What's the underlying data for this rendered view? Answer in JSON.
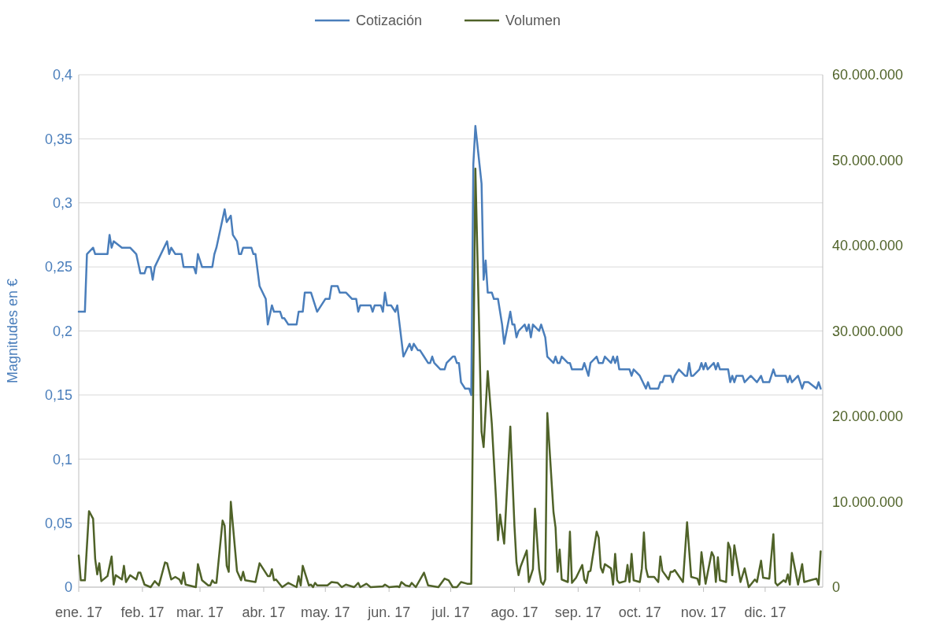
{
  "chart_data": {
    "type": "line",
    "ylabel": "Magnitudes en €",
    "legend": "top",
    "grid": "y",
    "line_style": "solid",
    "marker": "none",
    "xlim": [
      "2017-01-01",
      "2017-12-29"
    ],
    "xticks": [
      {
        "value": "2017-01-01",
        "label": "ene. 17"
      },
      {
        "value": "2017-02-01",
        "label": "feb. 17"
      },
      {
        "value": "2017-03-01",
        "label": "mar. 17"
      },
      {
        "value": "2017-04-01",
        "label": "abr. 17"
      },
      {
        "value": "2017-05-01",
        "label": "may. 17"
      },
      {
        "value": "2017-06-01",
        "label": "jun. 17"
      },
      {
        "value": "2017-07-01",
        "label": "jul. 17"
      },
      {
        "value": "2017-08-01",
        "label": "ago. 17"
      },
      {
        "value": "2017-09-01",
        "label": "sep. 17"
      },
      {
        "value": "2017-10-01",
        "label": "oct. 17"
      },
      {
        "value": "2017-11-01",
        "label": "nov. 17"
      },
      {
        "value": "2017-12-01",
        "label": "dic. 17"
      }
    ],
    "ylim": [
      0,
      0.4
    ],
    "yticks": [
      0,
      {
        "value": 0.05,
        "label": "0,05"
      },
      {
        "value": 0.1,
        "label": "0,1"
      },
      {
        "value": 0.15,
        "label": "0,15"
      },
      {
        "value": 0.2,
        "label": "0,2"
      },
      {
        "value": 0.25,
        "label": "0,25"
      },
      {
        "value": 0.3,
        "label": "0,3"
      },
      {
        "value": 0.35,
        "label": "0,35"
      },
      {
        "value": 0.4,
        "label": "0,4"
      }
    ],
    "y2lim": [
      0,
      60000000
    ],
    "y2ticks": [
      0,
      {
        "value": 10000000,
        "label": "10.000.000"
      },
      {
        "value": 20000000,
        "label": "20.000.000"
      },
      {
        "value": 30000000,
        "label": "30.000.000"
      },
      {
        "value": 40000000,
        "label": "40.000.000"
      },
      {
        "value": 50000000,
        "label": "50.000.000"
      },
      {
        "value": 60000000,
        "label": "60.000.000"
      }
    ],
    "series": [
      {
        "name": "Cotización",
        "color": "#4a7ebb",
        "x": [
          "2017-01-01",
          "2017-01-04",
          "2017-01-05",
          "2017-01-08",
          "2017-01-09",
          "2017-01-15",
          "2017-01-16",
          "2017-01-17",
          "2017-01-18",
          "2017-01-22",
          "2017-01-26",
          "2017-01-29",
          "2017-01-31",
          "2017-02-02",
          "2017-02-03",
          "2017-02-05",
          "2017-02-06",
          "2017-02-07",
          "2017-02-13",
          "2017-02-14",
          "2017-02-15",
          "2017-02-17",
          "2017-02-20",
          "2017-02-21",
          "2017-02-26",
          "2017-02-27",
          "2017-02-28",
          "2017-03-02",
          "2017-03-07",
          "2017-03-08",
          "2017-03-09",
          "2017-03-13",
          "2017-03-14",
          "2017-03-16",
          "2017-03-17",
          "2017-03-19",
          "2017-03-20",
          "2017-03-21",
          "2017-03-22",
          "2017-03-26",
          "2017-03-27",
          "2017-03-28",
          "2017-03-30",
          "2017-04-02",
          "2017-04-03",
          "2017-04-05",
          "2017-04-06",
          "2017-04-09",
          "2017-04-10",
          "2017-04-11",
          "2017-04-13",
          "2017-04-17",
          "2017-04-18",
          "2017-04-20",
          "2017-04-21",
          "2017-04-24",
          "2017-04-27",
          "2017-05-01",
          "2017-05-03",
          "2017-05-04",
          "2017-05-07",
          "2017-05-08",
          "2017-05-11",
          "2017-05-14",
          "2017-05-16",
          "2017-05-17",
          "2017-05-18",
          "2017-05-23",
          "2017-05-24",
          "2017-05-25",
          "2017-05-28",
          "2017-05-29",
          "2017-05-30",
          "2017-05-31",
          "2017-06-02",
          "2017-06-04",
          "2017-06-05",
          "2017-06-08",
          "2017-06-11",
          "2017-06-12",
          "2017-06-13",
          "2017-06-15",
          "2017-06-16",
          "2017-06-18",
          "2017-06-20",
          "2017-06-21",
          "2017-06-22",
          "2017-06-23",
          "2017-06-26",
          "2017-06-28",
          "2017-06-29",
          "2017-07-02",
          "2017-07-03",
          "2017-07-04",
          "2017-07-05",
          "2017-07-06",
          "2017-07-08",
          "2017-07-10",
          "2017-07-11",
          "2017-07-12",
          "2017-07-13",
          "2017-07-16",
          "2017-07-17",
          "2017-07-18",
          "2017-07-19",
          "2017-07-21",
          "2017-07-22",
          "2017-07-24",
          "2017-07-26",
          "2017-07-27",
          "2017-07-30",
          "2017-07-31",
          "2017-08-01",
          "2017-08-02",
          "2017-08-03",
          "2017-08-06",
          "2017-08-07",
          "2017-08-08",
          "2017-08-09",
          "2017-08-10",
          "2017-08-13",
          "2017-08-14",
          "2017-08-16",
          "2017-08-17",
          "2017-08-20",
          "2017-08-21",
          "2017-08-22",
          "2017-08-23",
          "2017-08-24",
          "2017-08-27",
          "2017-08-28",
          "2017-08-29",
          "2017-09-03",
          "2017-09-04",
          "2017-09-06",
          "2017-09-07",
          "2017-09-10",
          "2017-09-11",
          "2017-09-13",
          "2017-09-14",
          "2017-09-17",
          "2017-09-18",
          "2017-09-19",
          "2017-09-20",
          "2017-09-21",
          "2017-09-26",
          "2017-09-27",
          "2017-09-28",
          "2017-10-01",
          "2017-10-04",
          "2017-10-05",
          "2017-10-06",
          "2017-10-10",
          "2017-10-11",
          "2017-10-12",
          "2017-10-13",
          "2017-10-16",
          "2017-10-17",
          "2017-10-18",
          "2017-10-20",
          "2017-10-23",
          "2017-10-24",
          "2017-10-25",
          "2017-10-26",
          "2017-10-27",
          "2017-10-30",
          "2017-10-31",
          "2017-11-01",
          "2017-11-02",
          "2017-11-03",
          "2017-11-06",
          "2017-11-07",
          "2017-11-08",
          "2017-11-09",
          "2017-11-13",
          "2017-11-14",
          "2017-11-15",
          "2017-11-16",
          "2017-11-17",
          "2017-11-20",
          "2017-11-21",
          "2017-11-24",
          "2017-11-27",
          "2017-11-29",
          "2017-11-30",
          "2017-12-03",
          "2017-12-05",
          "2017-12-06",
          "2017-12-11",
          "2017-12-12",
          "2017-12-13",
          "2017-12-14",
          "2017-12-17",
          "2017-12-19",
          "2017-12-20",
          "2017-12-22",
          "2017-12-26",
          "2017-12-27",
          "2017-12-28"
        ],
        "values": [
          0.215,
          0.215,
          0.26,
          0.265,
          0.26,
          0.26,
          0.275,
          0.265,
          0.27,
          0.265,
          0.265,
          0.26,
          0.245,
          0.245,
          0.25,
          0.25,
          0.24,
          0.25,
          0.27,
          0.26,
          0.265,
          0.26,
          0.26,
          0.25,
          0.25,
          0.245,
          0.26,
          0.25,
          0.25,
          0.26,
          0.265,
          0.295,
          0.285,
          0.29,
          0.275,
          0.27,
          0.26,
          0.26,
          0.265,
          0.265,
          0.26,
          0.26,
          0.235,
          0.225,
          0.205,
          0.22,
          0.215,
          0.215,
          0.21,
          0.21,
          0.205,
          0.205,
          0.215,
          0.215,
          0.23,
          0.23,
          0.215,
          0.225,
          0.225,
          0.235,
          0.235,
          0.23,
          0.23,
          0.225,
          0.225,
          0.215,
          0.22,
          0.22,
          0.215,
          0.22,
          0.22,
          0.215,
          0.23,
          0.22,
          0.22,
          0.215,
          0.22,
          0.18,
          0.19,
          0.185,
          0.19,
          0.185,
          0.185,
          0.18,
          0.175,
          0.175,
          0.18,
          0.175,
          0.17,
          0.17,
          0.175,
          0.18,
          0.18,
          0.175,
          0.175,
          0.16,
          0.155,
          0.155,
          0.15,
          0.33,
          0.36,
          0.315,
          0.24,
          0.255,
          0.23,
          0.23,
          0.225,
          0.225,
          0.205,
          0.19,
          0.215,
          0.205,
          0.205,
          0.195,
          0.2,
          0.205,
          0.2,
          0.205,
          0.195,
          0.205,
          0.2,
          0.205,
          0.195,
          0.18,
          0.175,
          0.18,
          0.175,
          0.175,
          0.18,
          0.175,
          0.175,
          0.17,
          0.17,
          0.175,
          0.165,
          0.175,
          0.18,
          0.175,
          0.175,
          0.18,
          0.175,
          0.18,
          0.175,
          0.18,
          0.17,
          0.17,
          0.165,
          0.17,
          0.165,
          0.155,
          0.16,
          0.155,
          0.155,
          0.16,
          0.16,
          0.165,
          0.165,
          0.16,
          0.165,
          0.17,
          0.165,
          0.165,
          0.175,
          0.165,
          0.165,
          0.17,
          0.175,
          0.17,
          0.175,
          0.17,
          0.175,
          0.17,
          0.175,
          0.17,
          0.17,
          0.16,
          0.165,
          0.16,
          0.165,
          0.165,
          0.16,
          0.165,
          0.16,
          0.165,
          0.16,
          0.16,
          0.17,
          0.165,
          0.165,
          0.16,
          0.165,
          0.16,
          0.165,
          0.155,
          0.16,
          0.16,
          0.155,
          0.16,
          0.155
        ]
      },
      {
        "name": "Volumen",
        "color": "#4f6228",
        "axis": "y2",
        "x": [
          "2017-01-01",
          "2017-01-02",
          "2017-01-04",
          "2017-01-06",
          "2017-01-08",
          "2017-01-09",
          "2017-01-10",
          "2017-01-11",
          "2017-01-12",
          "2017-01-15",
          "2017-01-17",
          "2017-01-18",
          "2017-01-19",
          "2017-01-22",
          "2017-01-23",
          "2017-01-24",
          "2017-01-26",
          "2017-01-29",
          "2017-01-30",
          "2017-01-31",
          "2017-02-02",
          "2017-02-05",
          "2017-02-07",
          "2017-02-09",
          "2017-02-12",
          "2017-02-13",
          "2017-02-15",
          "2017-02-17",
          "2017-02-19",
          "2017-02-20",
          "2017-02-21",
          "2017-02-22",
          "2017-02-27",
          "2017-02-28",
          "2017-03-02",
          "2017-03-05",
          "2017-03-06",
          "2017-03-07",
          "2017-03-08",
          "2017-03-09",
          "2017-03-12",
          "2017-03-13",
          "2017-03-14",
          "2017-03-15",
          "2017-03-16",
          "2017-03-19",
          "2017-03-21",
          "2017-03-22",
          "2017-03-23",
          "2017-03-28",
          "2017-03-30",
          "2017-04-03",
          "2017-04-04",
          "2017-04-05",
          "2017-04-06",
          "2017-04-07",
          "2017-04-10",
          "2017-04-13",
          "2017-04-17",
          "2017-04-18",
          "2017-04-19",
          "2017-04-20",
          "2017-04-23",
          "2017-04-24",
          "2017-04-25",
          "2017-04-26",
          "2017-04-27",
          "2017-05-02",
          "2017-05-04",
          "2017-05-07",
          "2017-05-09",
          "2017-05-11",
          "2017-05-15",
          "2017-05-17",
          "2017-05-18",
          "2017-05-21",
          "2017-05-23",
          "2017-05-29",
          "2017-05-30",
          "2017-06-01",
          "2017-06-05",
          "2017-06-06",
          "2017-06-07",
          "2017-06-09",
          "2017-06-11",
          "2017-06-12",
          "2017-06-14",
          "2017-06-18",
          "2017-06-20",
          "2017-06-25",
          "2017-06-28",
          "2017-06-30",
          "2017-07-02",
          "2017-07-04",
          "2017-07-06",
          "2017-07-09",
          "2017-07-11",
          "2017-07-13",
          "2017-07-16",
          "2017-07-17",
          "2017-07-19",
          "2017-07-21",
          "2017-07-23",
          "2017-07-24",
          "2017-07-25",
          "2017-07-27",
          "2017-07-30",
          "2017-08-01",
          "2017-08-02",
          "2017-08-03",
          "2017-08-04",
          "2017-08-07",
          "2017-08-08",
          "2017-08-10",
          "2017-08-11",
          "2017-08-13",
          "2017-08-14",
          "2017-08-15",
          "2017-08-16",
          "2017-08-17",
          "2017-08-20",
          "2017-08-21",
          "2017-08-22",
          "2017-08-23",
          "2017-08-24",
          "2017-08-27",
          "2017-08-28",
          "2017-08-29",
          "2017-08-31",
          "2017-09-03",
          "2017-09-04",
          "2017-09-05",
          "2017-09-06",
          "2017-09-07",
          "2017-09-10",
          "2017-09-11",
          "2017-09-12",
          "2017-09-13",
          "2017-09-14",
          "2017-09-17",
          "2017-09-18",
          "2017-09-19",
          "2017-09-20",
          "2017-09-21",
          "2017-09-24",
          "2017-09-25",
          "2017-09-26",
          "2017-09-27",
          "2017-09-28",
          "2017-10-01",
          "2017-10-02",
          "2017-10-03",
          "2017-10-04",
          "2017-10-05",
          "2017-10-08",
          "2017-10-10",
          "2017-10-11",
          "2017-10-12",
          "2017-10-15",
          "2017-10-16",
          "2017-10-17",
          "2017-10-18",
          "2017-10-22",
          "2017-10-24",
          "2017-10-26",
          "2017-10-29",
          "2017-10-30",
          "2017-10-31",
          "2017-11-02",
          "2017-11-05",
          "2017-11-06",
          "2017-11-07",
          "2017-11-08",
          "2017-11-09",
          "2017-11-12",
          "2017-11-13",
          "2017-11-14",
          "2017-11-15",
          "2017-11-16",
          "2017-11-19",
          "2017-11-21",
          "2017-11-23",
          "2017-11-26",
          "2017-11-27",
          "2017-11-29",
          "2017-11-30",
          "2017-12-03",
          "2017-12-05",
          "2017-12-06",
          "2017-12-07",
          "2017-12-10",
          "2017-12-11",
          "2017-12-12",
          "2017-12-13",
          "2017-12-14",
          "2017-12-17",
          "2017-12-19",
          "2017-12-20",
          "2017-12-23",
          "2017-12-26",
          "2017-12-27",
          "2017-12-28"
        ],
        "values": [
          3700000,
          800000,
          800000,
          8900000,
          8000000,
          3300000,
          1500000,
          2800000,
          700000,
          1300000,
          3600000,
          300000,
          1400000,
          900000,
          2500000,
          600000,
          1400000,
          900000,
          1700000,
          1700000,
          300000,
          0,
          700000,
          200000,
          2900000,
          2800000,
          900000,
          1200000,
          900000,
          400000,
          1700000,
          300000,
          0,
          2700000,
          800000,
          200000,
          200000,
          800000,
          500000,
          500000,
          7800000,
          7200000,
          2500000,
          1800000,
          10000000,
          1900000,
          800000,
          1800000,
          800000,
          600000,
          2800000,
          1300000,
          1300000,
          2100000,
          800000,
          900000,
          0,
          500000,
          0,
          1300000,
          200000,
          2500000,
          200000,
          300000,
          0,
          500000,
          200000,
          200000,
          600000,
          500000,
          0,
          300000,
          0,
          500000,
          0,
          400000,
          0,
          100000,
          300000,
          0,
          100000,
          0,
          600000,
          200000,
          100000,
          500000,
          0,
          1700000,
          200000,
          0,
          1000000,
          800000,
          0,
          0,
          600000,
          400000,
          400000,
          49000000,
          18200000,
          16400000,
          25300000,
          19100000,
          10500000,
          5500000,
          8500000,
          5100000,
          18800000,
          7200000,
          2900000,
          1400000,
          2400000,
          4300000,
          600000,
          2100000,
          9200000,
          2100000,
          600000,
          300000,
          900000,
          20400000,
          8800000,
          7000000,
          1800000,
          4400000,
          900000,
          600000,
          6500000,
          500000,
          1100000,
          2600000,
          900000,
          500000,
          1800000,
          1900000,
          6500000,
          5800000,
          2300000,
          1700000,
          2700000,
          2200000,
          300000,
          3900000,
          800000,
          500000,
          700000,
          2600000,
          600000,
          3900000,
          800000,
          600000,
          2200000,
          6400000,
          2200000,
          1200000,
          1200000,
          600000,
          3600000,
          1900000,
          900000,
          1800000,
          1800000,
          2000000,
          600000,
          7600000,
          1200000,
          1000000,
          300000,
          4100000,
          400000,
          4100000,
          3600000,
          600000,
          3500000,
          800000,
          600000,
          5200000,
          4500000,
          1400000,
          4900000,
          600000,
          2200000,
          0,
          900000,
          600000,
          3100000,
          1100000,
          1000000,
          6200000,
          500000,
          200000,
          800000,
          600000,
          1500000,
          300000,
          4000000,
          300000,
          2700000,
          600000,
          800000,
          1000000,
          300000,
          4200000
        ]
      }
    ]
  }
}
